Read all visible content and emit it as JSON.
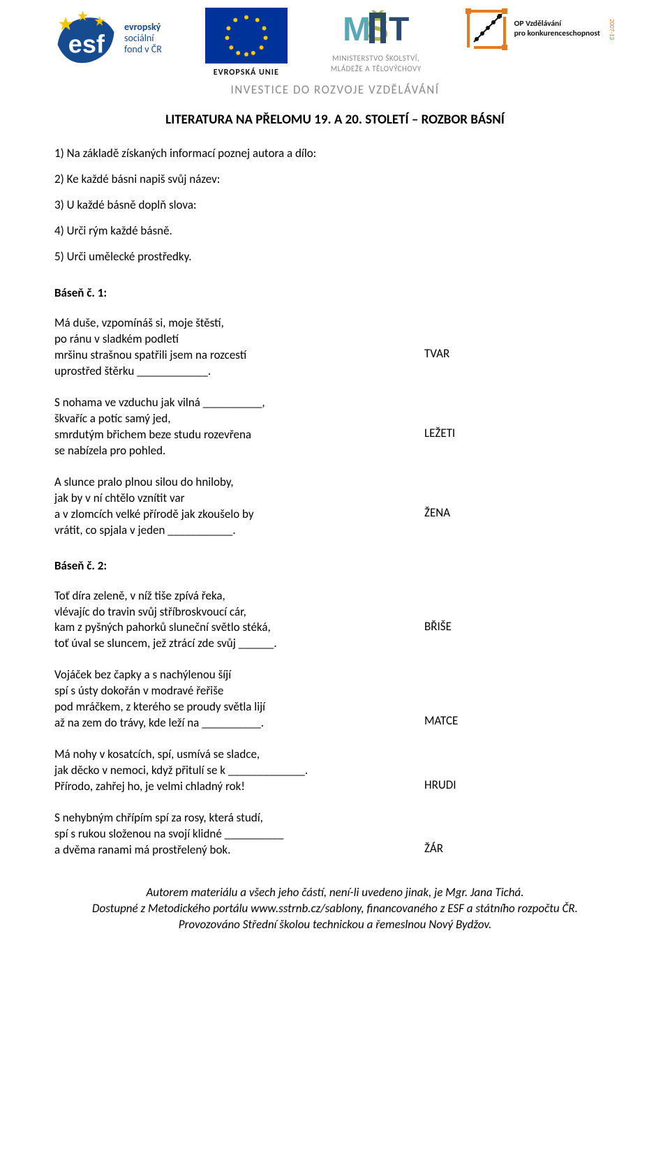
{
  "header": {
    "tagline": "INVESTICE DO ROZVOJE VZDĚLÁVÁNÍ",
    "logos": {
      "esf": {
        "line1": "evropský",
        "line2": "sociální",
        "line3": "fond v ČR"
      },
      "eu": {
        "label": "EVROPSKÁ UNIE"
      },
      "msmt": {
        "line1": "MINISTERSTVO ŠKOLSTVÍ,",
        "line2": "MLÁDEŽE A TĚLOVÝCHOVY"
      },
      "op": {
        "line1": "OP Vzdělávání",
        "line2": "pro konkurenceschopnost",
        "year": "2007-13"
      }
    }
  },
  "title": "LITERATURA NA PŘELOMU 19. A 20. STOLETÍ – ROZBOR BÁSNÍ",
  "tasks": [
    "1) Na základě získaných informací poznej autora a dílo:",
    "2) Ke každé básni napiš svůj název:",
    "3) U každé básně doplň slova:",
    "4) Urči rým každé básně.",
    "5) Urči umělecké prostředky."
  ],
  "poems": [
    {
      "heading": "Báseň č. 1:",
      "stanzas": [
        {
          "lines": [
            "Má duše, vzpomínáš si, moje štěstí,",
            "po ránu v sladkém podletí",
            "mršinu strašnou spatřili jsem na rozcestí",
            "uprostřed štěrku ____________."
          ],
          "clue": "TVAR",
          "clue_line_index": 2
        },
        {
          "lines": [
            "S nohama ve vzduchu jak vilná __________,",
            "škvaříc a potíc samý jed,",
            "smrdutým břichem beze studu rozevřena",
            "se nabízela pro pohled."
          ],
          "clue": "LEŽETI",
          "clue_line_index": 2
        },
        {
          "lines": [
            "A slunce pralo plnou silou do hniloby,",
            "jak by v ní chtělo vznítit var",
            "a v zlomcích velké přírodě jak zkoušelo by",
            "vrátit, co spjala v jeden ___________."
          ],
          "clue": "ŽENA",
          "clue_line_index": 2
        }
      ]
    },
    {
      "heading": "Báseň č. 2:",
      "stanzas": [
        {
          "lines": [
            "Toť díra zeleně, v níž tiše zpívá řeka,",
            "vlévajíc do travin svůj stříbroskvoucí cár,",
            "kam z pyšných pahorků sluneční světlo stéká,",
            "toť úval se sluncem, jež ztrácí zde svůj ______."
          ],
          "clue": "BŘIŠE",
          "clue_line_index": 2
        },
        {
          "lines": [
            "Vojáček bez čapky a s nachýlenou šíjí",
            "spí s ústy dokořán v modravé řeřiše",
            "pod mráčkem, z kterého se proudy světla lijí",
            "až na zem do trávy, kde leží na __________."
          ],
          "clue": "MATCE",
          "clue_line_index": 3
        },
        {
          "lines": [
            "Má nohy v kosatcích, spí, usmívá se sladce,",
            "jak děcko v nemoci, když přitulí se k _____________.",
            "Přírodo, zahřej ho, je velmi chladný rok!"
          ],
          "clue": "HRUDI",
          "clue_line_index": 2
        },
        {
          "lines": [
            "S nehybným chřípím spí za rosy, která studí,",
            "spí s rukou složenou na svojí klidné __________",
            "a dvěma ranami má prostřelený bok."
          ],
          "clue": "ŽÁR",
          "clue_line_index": 2
        }
      ]
    }
  ],
  "footer": {
    "line1": "Autorem materiálu a všech jeho částí, není-li uvedeno jinak, je Mgr. Jana Tichá.",
    "line2": "Dostupné z Metodického portálu www.sstrnb.cz/sablony, financovaného z ESF a státního rozpočtu ČR.",
    "line3": "Provozováno Střední školou technickou a řemeslnou Nový Bydžov."
  },
  "colors": {
    "text": "#000000",
    "grey": "#8a8a8a",
    "eu_blue": "#003399",
    "eu_star": "#ffcc00",
    "esf_blue": "#174b8f",
    "esf_yellow": "#f4c400",
    "op_orange": "#e57a1f",
    "background": "#ffffff"
  }
}
